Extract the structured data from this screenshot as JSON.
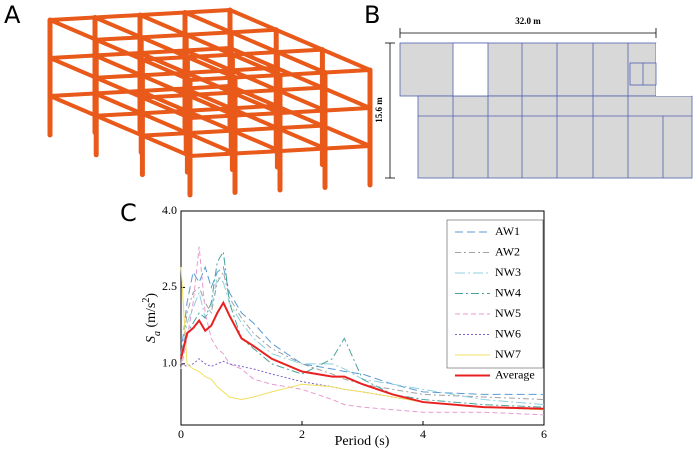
{
  "panels": {
    "a": "A",
    "b": "B",
    "c": "C"
  },
  "plan": {
    "width_label": "32.0 m",
    "depth_label": "15.6 m"
  },
  "chart_data": {
    "type": "line",
    "ylabel_parts": [
      "S",
      "a",
      " (m/s",
      "2",
      ")"
    ],
    "xlabel": "Period (s)",
    "x": [
      0,
      0.1,
      0.2,
      0.3,
      0.4,
      0.5,
      0.6,
      0.7,
      0.8,
      1.0,
      1.2,
      1.5,
      2.0,
      2.5,
      2.7,
      3.0,
      3.5,
      4.0,
      5.0,
      6.0
    ],
    "xlim": [
      0,
      6
    ],
    "xticks": [
      0,
      2,
      4,
      6
    ],
    "ylim": [
      -0.2,
      4.0
    ],
    "yticks": [
      {
        "value": 1,
        "label": "1.0"
      },
      {
        "value": 2.5,
        "label": "2.5"
      },
      {
        "value": 4,
        "label": "4.0"
      }
    ],
    "legend": "upper right",
    "series": [
      {
        "name": "AW1",
        "color": "#5b9bd5",
        "dash": "8 4",
        "values": [
          1.2,
          2.2,
          2.8,
          2.6,
          2.9,
          2.5,
          2.8,
          2.9,
          2.4,
          2.0,
          1.8,
          1.4,
          1.0,
          0.9,
          0.85,
          0.8,
          0.6,
          0.45,
          0.4,
          0.4
        ]
      },
      {
        "name": "AW2",
        "color": "#a0a0a0",
        "dash": "6 3 2 3",
        "values": [
          1.0,
          2.0,
          2.4,
          2.5,
          2.2,
          2.0,
          2.6,
          2.8,
          2.3,
          1.9,
          1.6,
          1.3,
          1.0,
          0.8,
          0.7,
          0.6,
          0.5,
          0.4,
          0.35,
          0.3
        ]
      },
      {
        "name": "NW3",
        "color": "#8fd0e0",
        "dash": "10 3 2 3",
        "values": [
          1.1,
          1.8,
          2.1,
          2.4,
          1.9,
          2.1,
          2.7,
          2.6,
          2.2,
          1.8,
          1.5,
          1.2,
          1.0,
          1.0,
          0.9,
          0.7,
          0.6,
          0.5,
          0.3,
          0.2
        ]
      },
      {
        "name": "NW4",
        "color": "#4aa39a",
        "dash": "8 3 2 3",
        "values": [
          1.2,
          1.6,
          1.8,
          2.0,
          1.9,
          2.2,
          3.0,
          3.2,
          2.2,
          1.5,
          1.3,
          1.0,
          0.8,
          1.1,
          1.5,
          0.7,
          0.4,
          0.3,
          0.2,
          0.15
        ]
      },
      {
        "name": "NW5",
        "color": "#e89ad0",
        "dash": "5 3",
        "values": [
          0.9,
          1.5,
          2.2,
          3.3,
          2.0,
          1.5,
          1.3,
          1.2,
          1.0,
          0.9,
          0.7,
          0.6,
          0.5,
          0.3,
          0.2,
          0.15,
          0.1,
          0.05,
          0.05,
          0.0
        ]
      },
      {
        "name": "NW6",
        "color": "#8060d0",
        "dash": "2 2",
        "values": [
          1.0,
          0.95,
          1.0,
          1.1,
          1.0,
          0.95,
          1.0,
          1.05,
          1.0,
          0.95,
          0.9,
          0.8,
          0.65,
          0.55,
          0.5,
          0.45,
          0.35,
          0.25,
          0.15,
          0.1
        ]
      },
      {
        "name": "NW7",
        "color": "#f0e060",
        "dash": "",
        "values": [
          2.9,
          1.0,
          0.9,
          0.85,
          0.75,
          0.7,
          0.55,
          0.45,
          0.35,
          0.3,
          0.35,
          0.45,
          0.6,
          0.55,
          0.5,
          0.45,
          0.35,
          0.25,
          0.15,
          0.1
        ]
      },
      {
        "name": "Average",
        "color": "#e82020",
        "dash": "",
        "width": 2,
        "values": [
          1.1,
          1.6,
          1.7,
          1.85,
          1.65,
          1.75,
          2.0,
          2.2,
          1.95,
          1.5,
          1.35,
          1.1,
          0.85,
          0.75,
          0.75,
          0.6,
          0.4,
          0.25,
          0.15,
          0.12
        ]
      }
    ]
  }
}
